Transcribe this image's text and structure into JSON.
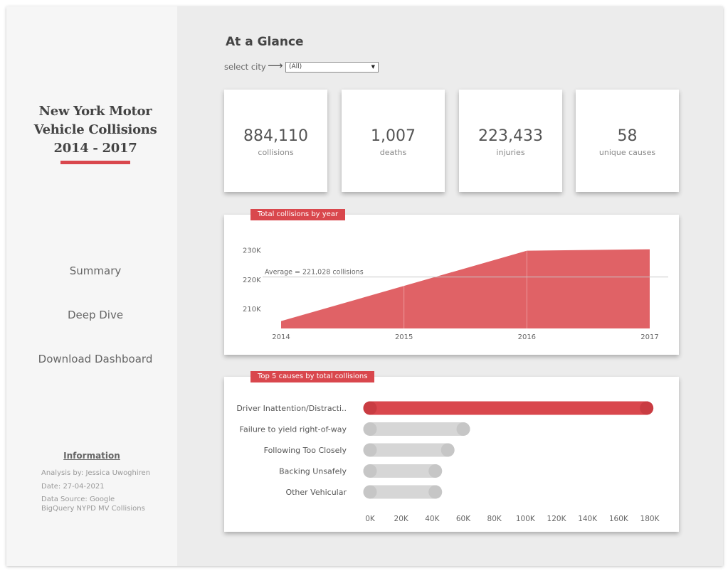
{
  "sidebar": {
    "title_lines": [
      "New York Motor",
      "Vehicle Collisions",
      "2014 - 2017"
    ],
    "nav": [
      "Summary",
      "Deep Dive",
      "Download Dashboard"
    ],
    "info": {
      "heading": "Information",
      "analysis_by": "Analysis by: Jessica Uwoghiren",
      "date": "Date: 27-04-2021",
      "source": "Data Source: Google BigQuery NYPD MV Collisions"
    }
  },
  "main": {
    "heading": "At a Glance",
    "select_label": "select city",
    "select_arrow": "⟶",
    "select_value": "(All)",
    "kpis": [
      {
        "value": "884,110",
        "label": "collisions"
      },
      {
        "value": "1,007",
        "label": "deaths"
      },
      {
        "value": "223,433",
        "label": "injuries"
      },
      {
        "value": "58",
        "label": "unique causes"
      }
    ]
  },
  "colors": {
    "accent": "#d9474d",
    "area": "#e06266",
    "bar_muted": "#d6d6d6"
  },
  "chart_data": [
    {
      "type": "area",
      "title": "Total collisions by year",
      "x": [
        "2014",
        "2015",
        "2016",
        "2017"
      ],
      "values": [
        206000,
        218000,
        230000,
        230500
      ],
      "ylim": [
        203500,
        235000
      ],
      "yticks": [
        210000,
        220000,
        230000
      ],
      "ytick_labels": [
        "210K",
        "220K",
        "230K"
      ],
      "reference_line": {
        "value": 221028,
        "label": "Average = 221,028 collisions"
      }
    },
    {
      "type": "bar",
      "orientation": "horizontal",
      "title": "Top 5 causes by total collisions",
      "categories": [
        "Driver Inattention/Distracti..",
        "Failure to yield right-of-way",
        "Following Too Closely",
        "Backing Unsafely",
        "Other Vehicular"
      ],
      "values": [
        178000,
        60000,
        50000,
        42000,
        42000
      ],
      "xlim": [
        0,
        180000
      ],
      "xticks": [
        0,
        20000,
        40000,
        60000,
        80000,
        100000,
        120000,
        140000,
        160000,
        180000
      ],
      "xtick_labels": [
        "0K",
        "20K",
        "40K",
        "60K",
        "80K",
        "100K",
        "120K",
        "140K",
        "160K",
        "180K"
      ],
      "highlight_index": 0
    }
  ]
}
